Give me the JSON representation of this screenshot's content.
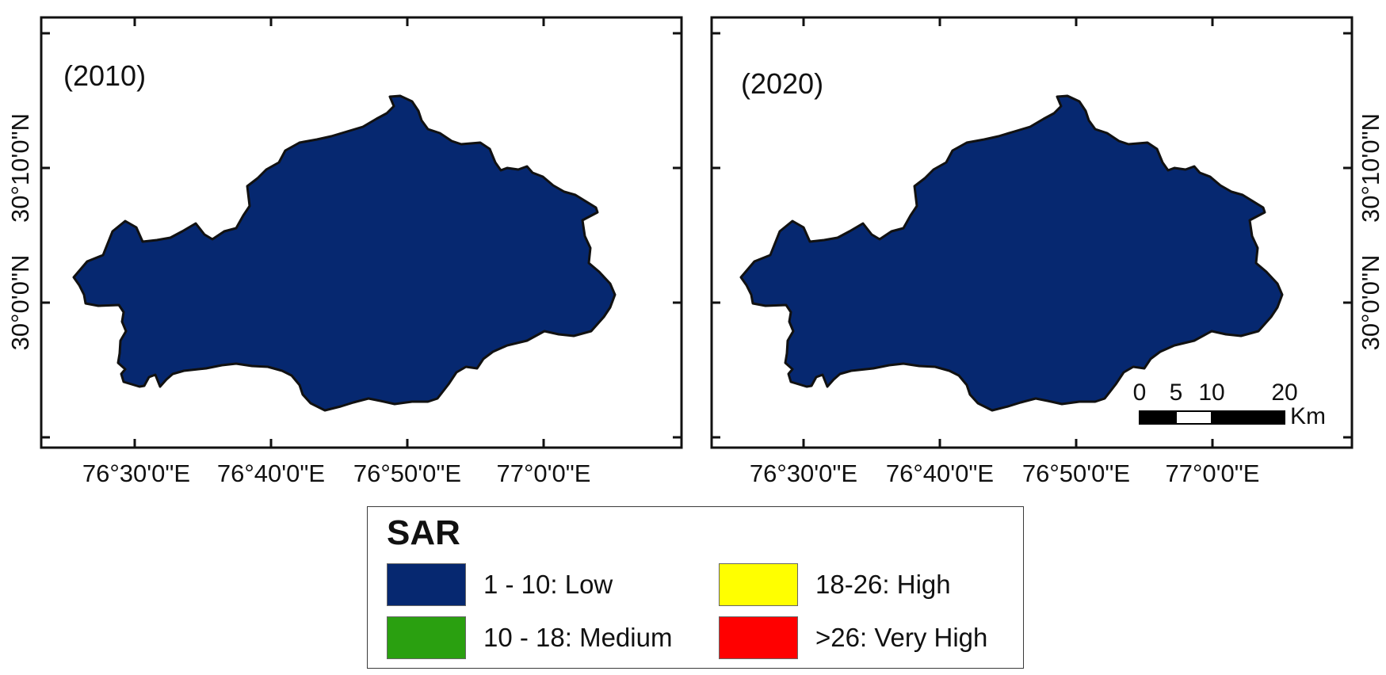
{
  "maps": [
    {
      "year_label": "(2010)",
      "fill": "#062870"
    },
    {
      "year_label": "(2020)",
      "fill": "#062870"
    }
  ],
  "longitude_labels": [
    "76°30'0\"E",
    "76°40'0\"E",
    "76°50'0\"E",
    "77°0'0\"E"
  ],
  "latitude_labels": [
    "30°10'0\"N",
    "30°0'0\"N"
  ],
  "scale_bar": {
    "tick_labels": [
      "0",
      "5",
      "10",
      "20"
    ],
    "unit": "Km"
  },
  "legend": {
    "title": "SAR",
    "items": [
      {
        "label": "1 - 10: Low",
        "color": "#062870"
      },
      {
        "label": "10 - 18: Medium",
        "color": "#2aa010"
      },
      {
        "label": "18-26: High",
        "color": "#ffff00"
      },
      {
        "label": ">26: Very High",
        "color": "#ff0000"
      }
    ]
  }
}
